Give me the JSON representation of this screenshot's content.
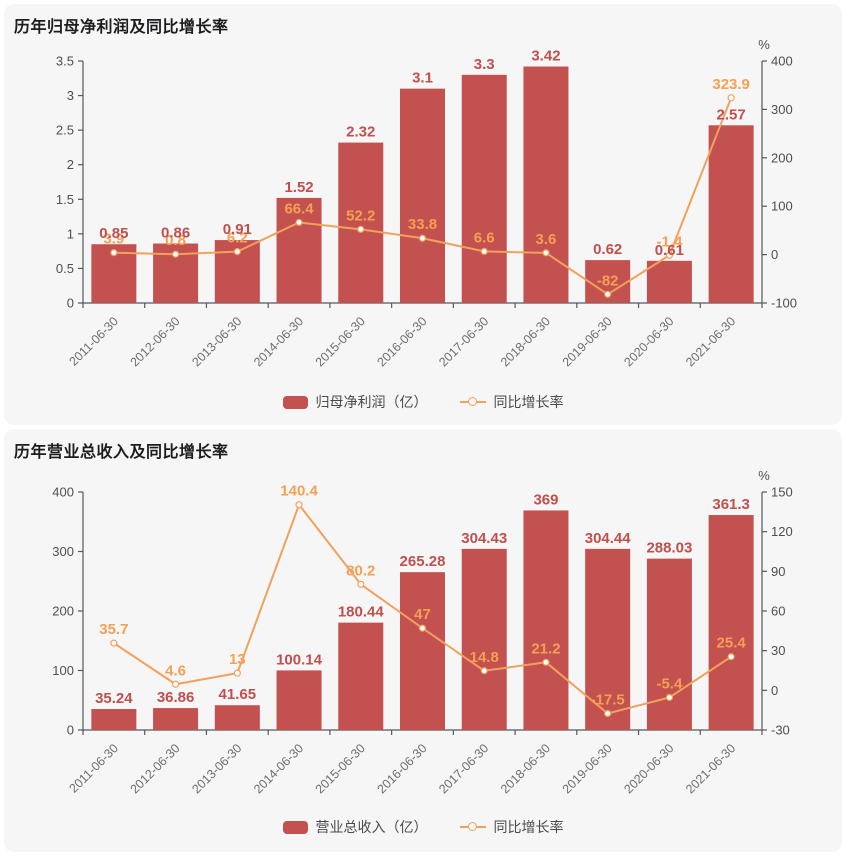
{
  "colors": {
    "bar": "#c25150",
    "bar_label": "#c0504d",
    "line": "#f2a15c",
    "line_label": "#f5a053",
    "marker_fill": "#ffffff",
    "axis_line": "#55585c",
    "axis_label": "#4c4f54",
    "x_label": "#6d6d6d",
    "title": "#1d1d1f",
    "legend_text": "#4a4a4a",
    "card_bg": "#f6f6f7",
    "page_bg": "#ffffff"
  },
  "chart_data": [
    {
      "type": "bar+line",
      "title": "历年归母净利润及同比增长率",
      "categories": [
        "2011-06-30",
        "2012-06-30",
        "2013-06-30",
        "2014-06-30",
        "2015-06-30",
        "2016-06-30",
        "2017-06-30",
        "2018-06-30",
        "2019-06-30",
        "2020-06-30",
        "2021-06-30"
      ],
      "series": [
        {
          "name": "归母净利润（亿）",
          "type": "bar",
          "yaxis": "left",
          "values": [
            0.85,
            0.86,
            0.91,
            1.52,
            2.32,
            3.1,
            3.3,
            3.42,
            0.62,
            0.61,
            2.57
          ]
        },
        {
          "name": "同比增长率",
          "type": "line",
          "yaxis": "right",
          "unit": "%",
          "values": [
            3.9,
            0.8,
            6.2,
            66.4,
            52.2,
            33.8,
            6.6,
            3.6,
            -82,
            -1.4,
            323.9
          ]
        }
      ],
      "left_axis": {
        "min": 0,
        "max": 3.5,
        "step": 0.5
      },
      "right_axis": {
        "min": -100,
        "max": 400,
        "step": 100,
        "title": "%"
      },
      "legend": [
        "归母净利润（亿）",
        "同比增长率"
      ],
      "legend_position": "bottom",
      "grid": false
    },
    {
      "type": "bar+line",
      "title": "历年营业总收入及同比增长率",
      "categories": [
        "2011-06-30",
        "2012-06-30",
        "2013-06-30",
        "2014-06-30",
        "2015-06-30",
        "2016-06-30",
        "2017-06-30",
        "2018-06-30",
        "2019-06-30",
        "2020-06-30",
        "2021-06-30"
      ],
      "series": [
        {
          "name": "营业总收入（亿）",
          "type": "bar",
          "yaxis": "left",
          "values": [
            35.24,
            36.86,
            41.65,
            100.14,
            180.44,
            265.28,
            304.43,
            369,
            304.44,
            288.03,
            361.3
          ]
        },
        {
          "name": "同比增长率",
          "type": "line",
          "yaxis": "right",
          "unit": "%",
          "values": [
            35.7,
            4.6,
            13,
            140.4,
            80.2,
            47,
            14.8,
            21.2,
            -17.5,
            -5.4,
            25.4
          ]
        }
      ],
      "left_axis": {
        "min": 0,
        "max": 400,
        "step": 100
      },
      "right_axis": {
        "min": -30,
        "max": 150,
        "step": 30,
        "title": "%"
      },
      "legend": [
        "营业总收入（亿）",
        "同比增长率"
      ],
      "legend_position": "bottom",
      "grid": false
    }
  ]
}
